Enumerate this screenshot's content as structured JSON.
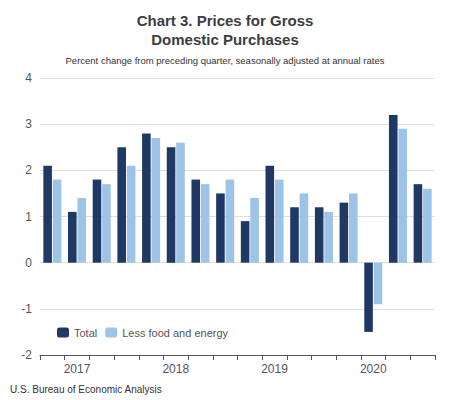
{
  "chart_data": {
    "type": "bar",
    "title": "Chart 3. Prices for Gross\nDomestic Purchases",
    "subtitle": "Percent change from preceding quarter, seasonally adjusted at annual rates",
    "annotations": [
      "U.S. Bureau of Economic Analysis"
    ],
    "categories": [
      null,
      "2017",
      null,
      null,
      null,
      "2018",
      null,
      null,
      null,
      "2019",
      null,
      null,
      null,
      "2020",
      null,
      null
    ],
    "series": [
      {
        "name": "Total",
        "color": "#1f3864",
        "values": [
          2.1,
          1.1,
          1.8,
          2.5,
          2.8,
          2.5,
          1.8,
          1.5,
          0.9,
          2.1,
          1.2,
          1.2,
          1.3,
          -1.5,
          3.2,
          1.7
        ]
      },
      {
        "name": "Less food and energy",
        "color": "#9dc3e6",
        "values": [
          1.8,
          1.4,
          1.7,
          2.1,
          2.7,
          2.6,
          1.7,
          1.8,
          1.4,
          1.8,
          1.5,
          1.1,
          1.5,
          -0.9,
          2.9,
          1.6
        ]
      }
    ],
    "ylim": [
      -2,
      4
    ],
    "yticks": [
      -2,
      -1,
      0,
      1,
      2,
      3,
      4
    ],
    "grid": true,
    "legend": "lower left"
  }
}
